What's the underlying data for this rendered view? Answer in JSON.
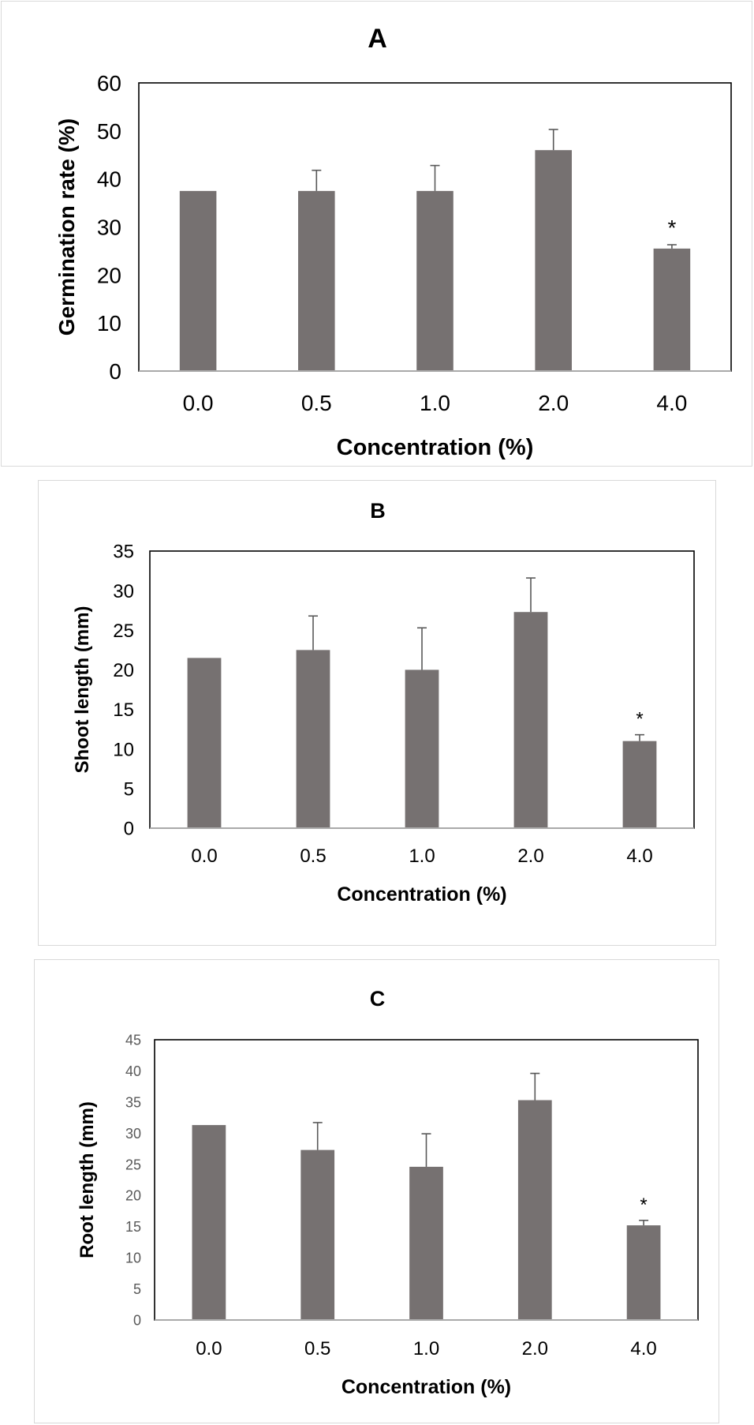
{
  "chart_data": [
    {
      "type": "bar",
      "panel": "A",
      "title": "A",
      "xlabel": "Concentration (%)",
      "ylabel": "Germination rate (%)",
      "categories": [
        "0.0",
        "0.5",
        "1.0",
        "2.0",
        "4.0"
      ],
      "values": [
        37.5,
        37.5,
        37.5,
        46,
        25.5
      ],
      "error": [
        0,
        4.3,
        5.3,
        4.3,
        0.8
      ],
      "annotations": [
        "",
        "",
        "",
        "",
        "*"
      ],
      "ylim": [
        0,
        60
      ],
      "yticks": [
        0,
        10,
        20,
        30,
        40,
        50,
        60
      ],
      "grid": false,
      "bar_color": "#767171"
    },
    {
      "type": "bar",
      "panel": "B",
      "title": "B",
      "xlabel": "Concentration (%)",
      "ylabel": "Shoot length (mm)",
      "categories": [
        "0.0",
        "0.5",
        "1.0",
        "2.0",
        "4.0"
      ],
      "values": [
        21.5,
        22.5,
        20,
        27.3,
        11
      ],
      "error": [
        0,
        4.3,
        5.3,
        4.3,
        0.8
      ],
      "annotations": [
        "",
        "",
        "",
        "",
        "*"
      ],
      "ylim": [
        0,
        35
      ],
      "yticks": [
        0,
        5,
        10,
        15,
        20,
        25,
        30,
        35
      ],
      "grid": false,
      "bar_color": "#767171"
    },
    {
      "type": "bar",
      "panel": "C",
      "title": "C",
      "xlabel": "Concentration (%)",
      "ylabel": "Root length (mm)",
      "categories": [
        "0.0",
        "0.5",
        "1.0",
        "2.0",
        "4.0"
      ],
      "values": [
        31.3,
        27.3,
        24.6,
        35.3,
        15.2
      ],
      "error": [
        0,
        4.4,
        5.3,
        4.3,
        0.8
      ],
      "annotations": [
        "",
        "",
        "",
        "",
        "*"
      ],
      "ylim": [
        0,
        45
      ],
      "yticks": [
        0,
        5,
        10,
        15,
        20,
        25,
        30,
        35,
        40,
        45
      ],
      "grid": false,
      "bar_color": "#767171"
    }
  ]
}
